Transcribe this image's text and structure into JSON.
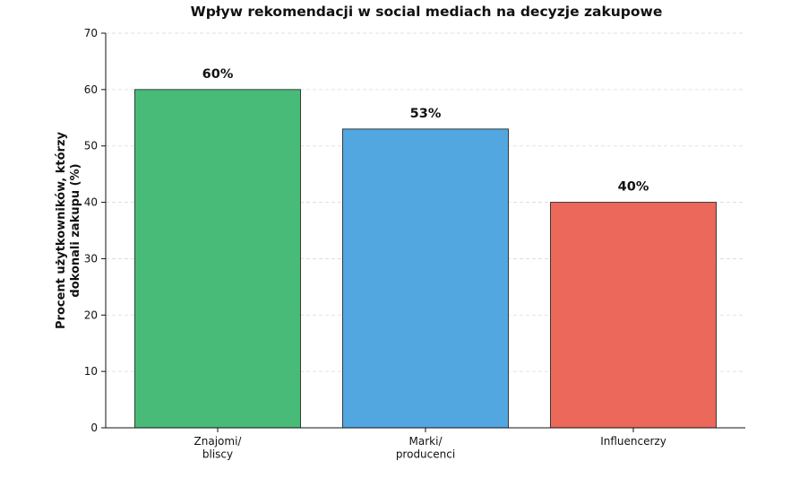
{
  "chart_data": {
    "type": "bar",
    "title": "Wpływ rekomendacji w social mediach na decyzje zakupowe",
    "xlabel": "",
    "ylabel": [
      "Procent użytkowników, którzy",
      "dokonali zakupu (%)"
    ],
    "ylim": [
      0,
      70
    ],
    "yticks": [
      0,
      10,
      20,
      30,
      40,
      50,
      60,
      70
    ],
    "grid": true,
    "legend": "none",
    "categories": [
      [
        "Znajomi/",
        "bliscy"
      ],
      [
        "Marki/",
        "producenci"
      ],
      [
        "Influencerzy"
      ]
    ],
    "values": [
      60,
      53,
      40
    ],
    "value_labels": [
      "60%",
      "53%",
      "40%"
    ],
    "colors": [
      "#48bb78",
      "#52a7e0",
      "#ec685b"
    ]
  }
}
